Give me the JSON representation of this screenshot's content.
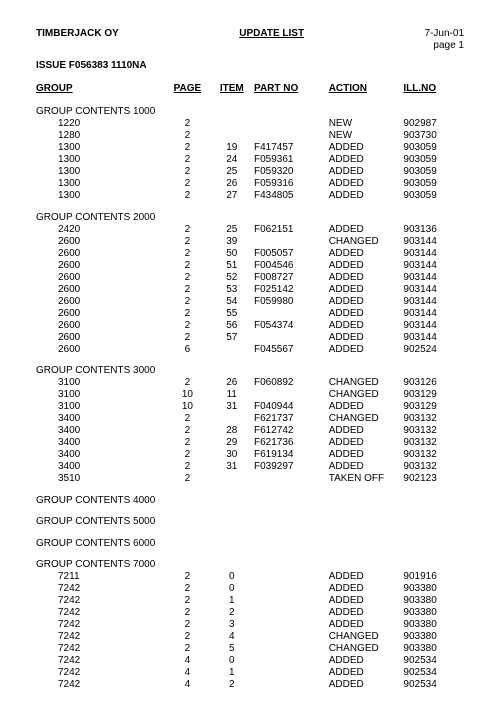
{
  "header": {
    "company": "TIMBERJACK OY",
    "title": "UPDATE LIST",
    "date": "7-Jun-01",
    "page_label": "page 1",
    "issue": "ISSUE  F056383  1110NA"
  },
  "columns": {
    "group": "GROUP",
    "page": "PAGE",
    "item": "ITEM",
    "part": "PART NO",
    "action": "ACTION",
    "ill": "ILL.NO"
  },
  "sections": [
    {
      "title": "GROUP CONTENTS 1000",
      "rows": [
        {
          "g": "1220",
          "p": "2",
          "i": "",
          "pn": "",
          "a": "NEW",
          "il": "902987"
        },
        {
          "g": "1280",
          "p": "2",
          "i": "",
          "pn": "",
          "a": "NEW",
          "il": "903730"
        },
        {
          "g": "1300",
          "p": "2",
          "i": "19",
          "pn": "F417457",
          "a": "ADDED",
          "il": "903059"
        },
        {
          "g": "1300",
          "p": "2",
          "i": "24",
          "pn": "F059361",
          "a": "ADDED",
          "il": "903059"
        },
        {
          "g": "1300",
          "p": "2",
          "i": "25",
          "pn": "F059320",
          "a": "ADDED",
          "il": "903059"
        },
        {
          "g": "1300",
          "p": "2",
          "i": "26",
          "pn": "F059316",
          "a": "ADDED",
          "il": "903059"
        },
        {
          "g": "1300",
          "p": "2",
          "i": "27",
          "pn": "F434805",
          "a": "ADDED",
          "il": "903059"
        }
      ]
    },
    {
      "title": "GROUP CONTENTS 2000",
      "rows": [
        {
          "g": "2420",
          "p": "2",
          "i": "25",
          "pn": "F062151",
          "a": "ADDED",
          "il": "903136"
        },
        {
          "g": "2600",
          "p": "2",
          "i": "39",
          "pn": "",
          "a": "CHANGED",
          "il": "903144"
        },
        {
          "g": "2600",
          "p": "2",
          "i": "50",
          "pn": "F005057",
          "a": "ADDED",
          "il": "903144"
        },
        {
          "g": "2600",
          "p": "2",
          "i": "51",
          "pn": "F004546",
          "a": "ADDED",
          "il": "903144"
        },
        {
          "g": "2600",
          "p": "2",
          "i": "52",
          "pn": "F008727",
          "a": "ADDED",
          "il": "903144"
        },
        {
          "g": "2600",
          "p": "2",
          "i": "53",
          "pn": "F025142",
          "a": "ADDED",
          "il": "903144"
        },
        {
          "g": "2600",
          "p": "2",
          "i": "54",
          "pn": "F059980",
          "a": "ADDED",
          "il": "903144"
        },
        {
          "g": "2600",
          "p": "2",
          "i": "55",
          "pn": "",
          "a": "ADDED",
          "il": "903144"
        },
        {
          "g": "2600",
          "p": "2",
          "i": "56",
          "pn": "F054374",
          "a": "ADDED",
          "il": "903144"
        },
        {
          "g": "2600",
          "p": "2",
          "i": "57",
          "pn": "",
          "a": "ADDED",
          "il": "903144"
        },
        {
          "g": "2600",
          "p": "6",
          "i": "",
          "pn": "F045567",
          "a": "ADDED",
          "il": "902524"
        }
      ]
    },
    {
      "title": "GROUP CONTENTS 3000",
      "rows": [
        {
          "g": "3100",
          "p": "2",
          "i": "26",
          "pn": "F060892",
          "a": "CHANGED",
          "il": "903126"
        },
        {
          "g": "3100",
          "p": "10",
          "i": "11",
          "pn": "",
          "a": "CHANGED",
          "il": "903129"
        },
        {
          "g": "3100",
          "p": "10",
          "i": "31",
          "pn": "F040944",
          "a": "ADDED",
          "il": "903129"
        },
        {
          "g": "3400",
          "p": "2",
          "i": "",
          "pn": "F621737",
          "a": "CHANGED",
          "il": "903132"
        },
        {
          "g": "3400",
          "p": "2",
          "i": "28",
          "pn": "F612742",
          "a": "ADDED",
          "il": "903132"
        },
        {
          "g": "3400",
          "p": "2",
          "i": "29",
          "pn": "F621736",
          "a": "ADDED",
          "il": "903132"
        },
        {
          "g": "3400",
          "p": "2",
          "i": "30",
          "pn": "F619134",
          "a": "ADDED",
          "il": "903132"
        },
        {
          "g": "3400",
          "p": "2",
          "i": "31",
          "pn": "F039297",
          "a": "ADDED",
          "il": "903132"
        },
        {
          "g": "3510",
          "p": "2",
          "i": "",
          "pn": "",
          "a": "TAKEN OFF",
          "il": "902123"
        }
      ]
    },
    {
      "title": "GROUP CONTENTS 4000",
      "rows": []
    },
    {
      "title": "GROUP CONTENTS 5000",
      "rows": []
    },
    {
      "title": "GROUP CONTENTS 6000",
      "rows": []
    },
    {
      "title": "GROUP CONTENTS 7000",
      "rows": [
        {
          "g": "7211",
          "p": "2",
          "i": "0",
          "pn": "",
          "a": "ADDED",
          "il": "901916"
        },
        {
          "g": "7242",
          "p": "2",
          "i": "0",
          "pn": "",
          "a": "ADDED",
          "il": "903380"
        },
        {
          "g": "7242",
          "p": "2",
          "i": "1",
          "pn": "",
          "a": "ADDED",
          "il": "903380"
        },
        {
          "g": "7242",
          "p": "2",
          "i": "2",
          "pn": "",
          "a": "ADDED",
          "il": "903380"
        },
        {
          "g": "7242",
          "p": "2",
          "i": "3",
          "pn": "",
          "a": "ADDED",
          "il": "903380"
        },
        {
          "g": "7242",
          "p": "2",
          "i": "4",
          "pn": "",
          "a": "CHANGED",
          "il": "903380"
        },
        {
          "g": "7242",
          "p": "2",
          "i": "5",
          "pn": "",
          "a": "CHANGED",
          "il": "903380"
        },
        {
          "g": "7242",
          "p": "4",
          "i": "0",
          "pn": "",
          "a": "ADDED",
          "il": "902534"
        },
        {
          "g": "7242",
          "p": "4",
          "i": "1",
          "pn": "",
          "a": "ADDED",
          "il": "902534"
        },
        {
          "g": "7242",
          "p": "4",
          "i": "2",
          "pn": "",
          "a": "ADDED",
          "il": "902534"
        }
      ]
    }
  ]
}
